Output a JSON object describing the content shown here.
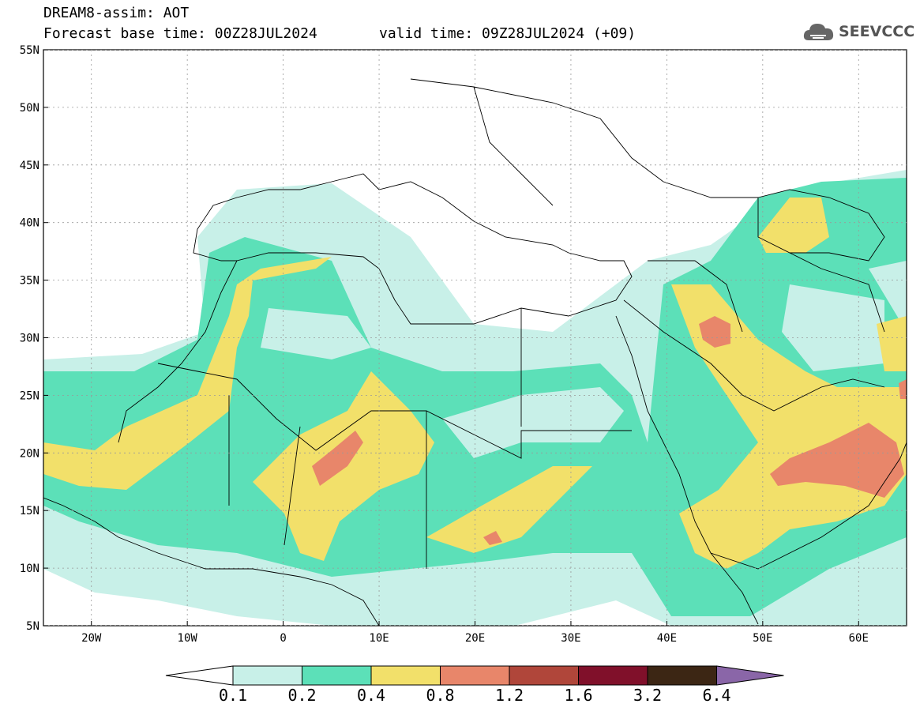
{
  "header": {
    "title_line1": "DREAM8-assim: AOT",
    "base_time": "Forecast base time: 00Z28JUL2024",
    "valid_time": "valid time: 09Z28JUL2024 (+09)"
  },
  "logo": {
    "text": "SEEVCCC",
    "icon": "cloud-icon"
  },
  "axes": {
    "lat_labels": [
      "55N",
      "50N",
      "45N",
      "40N",
      "35N",
      "30N",
      "25N",
      "20N",
      "15N",
      "10N",
      "5N"
    ],
    "lon_labels": [
      "20W",
      "10W",
      "0",
      "10E",
      "20E",
      "30E",
      "40E",
      "50E",
      "60E"
    ],
    "lat_range": [
      5,
      55
    ],
    "lon_range": [
      -25,
      65
    ]
  },
  "colorbar": {
    "labels": [
      "0.1",
      "0.2",
      "0.4",
      "0.8",
      "1.2",
      "1.6",
      "3.2",
      "6.4"
    ],
    "colors": [
      "#c8f0e8",
      "#5ce0b8",
      "#f2e06a",
      "#e8866a",
      "#b0463a",
      "#80102a",
      "#3c2614",
      "#8a66a8"
    ]
  }
}
